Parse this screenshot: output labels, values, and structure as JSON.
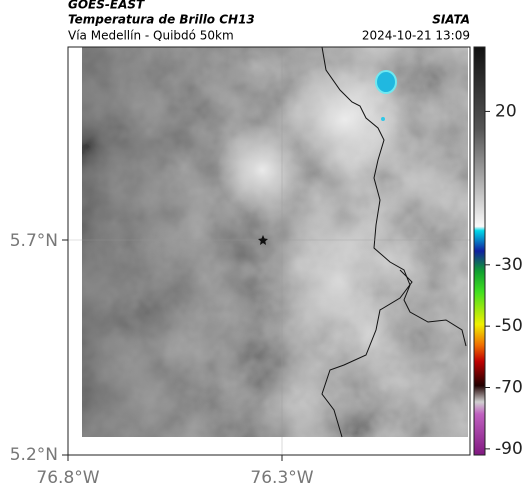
{
  "header": {
    "source": "GOES-EAST",
    "title": "Temperatura de Brillo CH13",
    "subtitle": "Vía Medellín - Quibdó 50km",
    "agency": "SIATA",
    "timestamp": "2024-10-21 13:09"
  },
  "map": {
    "lat_labels": [
      "5.7°N",
      "5.2°N"
    ],
    "lon_labels": [
      "76.8°W",
      "76.3°W"
    ]
  },
  "colorbar": {
    "lim": [
      -92,
      41
    ],
    "ticks": [
      20,
      -30,
      -50,
      -70,
      -90
    ]
  }
}
